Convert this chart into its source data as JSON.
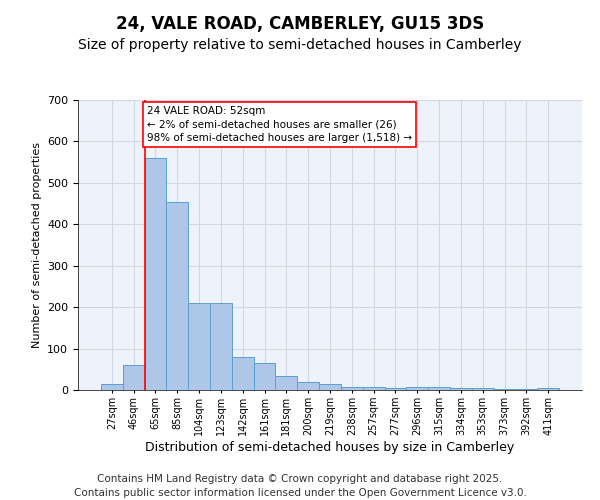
{
  "title": "24, VALE ROAD, CAMBERLEY, GU15 3DS",
  "subtitle": "Size of property relative to semi-detached houses in Camberley",
  "xlabel": "Distribution of semi-detached houses by size in Camberley",
  "ylabel": "Number of semi-detached properties",
  "categories": [
    "27sqm",
    "46sqm",
    "65sqm",
    "85sqm",
    "104sqm",
    "123sqm",
    "142sqm",
    "161sqm",
    "181sqm",
    "200sqm",
    "219sqm",
    "238sqm",
    "257sqm",
    "277sqm",
    "296sqm",
    "315sqm",
    "334sqm",
    "353sqm",
    "373sqm",
    "392sqm",
    "411sqm"
  ],
  "values": [
    15,
    60,
    560,
    455,
    210,
    210,
    80,
    65,
    35,
    20,
    15,
    8,
    8,
    5,
    8,
    8,
    5,
    5,
    3,
    3,
    5
  ],
  "bar_color": "#aec6e8",
  "bar_edge_color": "#5a9fd4",
  "vline_x": 1.5,
  "vline_color": "red",
  "ylim": [
    0,
    700
  ],
  "yticks": [
    0,
    100,
    200,
    300,
    400,
    500,
    600,
    700
  ],
  "annotation_title": "24 VALE ROAD: 52sqm",
  "annotation_line1": "← 2% of semi-detached houses are smaller (26)",
  "annotation_line2": "98% of semi-detached houses are larger (1,518) →",
  "annotation_box_color": "red",
  "grid_color": "#d0d8e8",
  "bg_color": "#eef2fa",
  "footer1": "Contains HM Land Registry data © Crown copyright and database right 2025.",
  "footer2": "Contains public sector information licensed under the Open Government Licence v3.0.",
  "title_fontsize": 12,
  "subtitle_fontsize": 10,
  "footer_fontsize": 7.5,
  "ylabel_fontsize": 8,
  "xlabel_fontsize": 9,
  "tick_label_fontsize": 7,
  "annotation_fontsize": 7.5
}
